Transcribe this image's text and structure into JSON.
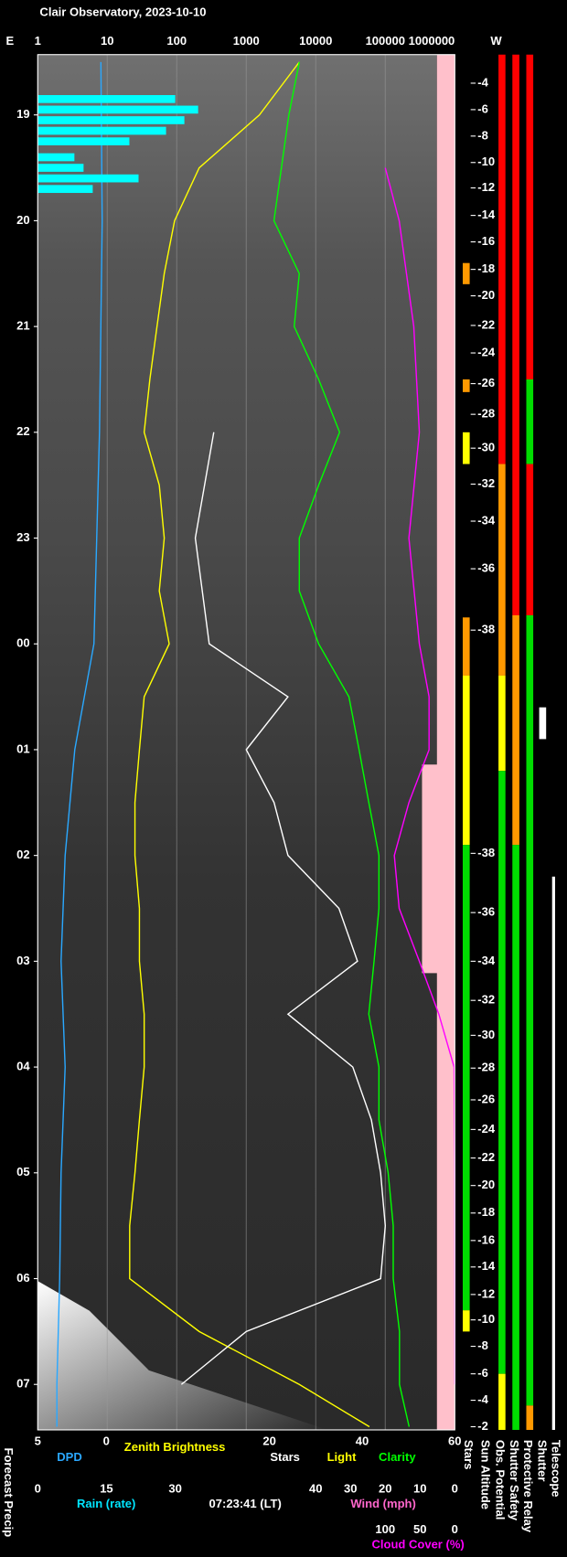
{
  "chart_data": {
    "type": "line",
    "title": "Clair Observatory, 2023-10-10",
    "left_end": "E",
    "right_end": "W",
    "forecast_precip_label": "Forecast Precip",
    "light_label": "Light",
    "clock": "07:23:41 (LT)",
    "log_x": true,
    "grid": true,
    "xlim": [
      1,
      1000000
    ],
    "xticks": [
      1,
      10,
      100,
      1000,
      10000,
      100000,
      1000000
    ],
    "ylim": [
      18.43,
      31.43
    ],
    "yticks": [
      19,
      20,
      21,
      22,
      23,
      {
        "value": 24,
        "label": "00"
      },
      {
        "value": 25,
        "label": "01"
      },
      {
        "value": 26,
        "label": "02"
      },
      {
        "value": 27,
        "label": "03"
      },
      {
        "value": 28,
        "label": "04"
      },
      {
        "value": 29,
        "label": "05"
      },
      {
        "value": 30,
        "label": "06"
      },
      {
        "value": 31,
        "label": "07"
      }
    ],
    "dpd_axis": {
      "lim": [
        5,
        -25.4
      ],
      "ticks": [
        5,
        0
      ]
    },
    "stars_axis": {
      "lim": [
        -30,
        60
      ],
      "ticks": [
        20,
        40,
        60
      ]
    },
    "rain_axis": {
      "lim": [
        0,
        91
      ],
      "ticks": [
        0,
        15,
        30
      ]
    },
    "wind_axis": {
      "label": "Wind (mph)",
      "lim": [
        120,
        0
      ],
      "ticks": [
        40,
        30,
        20,
        10,
        0
      ]
    },
    "cloud_axis": {
      "lim": [
        600,
        0
      ],
      "ticks": [
        100,
        50,
        0
      ]
    },
    "sun_altitude": {
      "label": "Sun Altitude",
      "times": [
        18.7,
        18.95,
        19.2,
        19.45,
        19.69,
        19.95,
        20.2,
        20.46,
        20.71,
        20.99,
        21.25,
        21.54,
        21.83,
        22.15,
        22.49,
        22.84,
        23.29,
        23.87,
        25.98,
        26.54,
        27.0,
        27.37,
        27.7,
        28.01,
        28.31,
        28.59,
        28.86,
        29.12,
        29.38,
        29.64,
        29.89,
        30.15,
        30.39,
        30.64,
        30.9,
        31.15,
        31.4
      ],
      "values": [
        -4,
        -6,
        -8,
        -10,
        -12,
        -14,
        -16,
        -18,
        -20,
        -22,
        -24,
        -26,
        -28,
        -30,
        -32,
        -34,
        -36,
        -38,
        -38,
        -36,
        -34,
        -32,
        -30,
        -28,
        -26,
        -24,
        -22,
        -20,
        -18,
        -16,
        -14,
        -12,
        -10,
        -8,
        -6,
        -4,
        -2
      ]
    },
    "series": [
      {
        "name": "DPD",
        "color": "#2aa8ff",
        "axis": "dpd_axis",
        "style": "line",
        "times": [
          18.5,
          20,
          22,
          24,
          25,
          26,
          27,
          28,
          29,
          30,
          31,
          31.4
        ],
        "values": [
          0.4,
          0.3,
          0.5,
          0.9,
          2.3,
          3.0,
          3.3,
          3.0,
          3.3,
          3.4,
          3.6,
          3.6
        ]
      },
      {
        "name": "Zenith Brightness",
        "color": "#ffff00",
        "axis": "top",
        "style": "line",
        "times": [
          18.5,
          19,
          19.5,
          20,
          20.5,
          21,
          21.5,
          22,
          22.5,
          23,
          23.5,
          24,
          24.5,
          25,
          25.5,
          26,
          26.5,
          27,
          27.5,
          28,
          28.5,
          29,
          29.5,
          30,
          30.5,
          31,
          31.4
        ],
        "values": [
          5800,
          1550,
          210,
          93,
          66,
          52,
          41,
          34,
          56,
          66,
          56,
          78,
          34,
          29,
          25,
          25,
          29,
          29,
          34,
          34,
          29,
          25,
          21,
          21,
          210,
          5800,
          59000
        ]
      },
      {
        "name": "Stars",
        "color": "#ffffff",
        "axis": "stars_axis",
        "style": "line",
        "times": [
          22,
          23,
          24,
          24.5,
          25,
          25.5,
          26,
          26.5,
          27,
          27.5,
          28,
          28.5,
          29,
          29.5,
          30,
          30.5,
          31
        ],
        "values": [
          8,
          4,
          7,
          24,
          15,
          21,
          24,
          35,
          39,
          24,
          38,
          42,
          44,
          45,
          44,
          15,
          1
        ]
      },
      {
        "name": "Clarity",
        "color": "#00ff00",
        "axis": "top",
        "style": "line",
        "times": [
          18.5,
          19,
          20,
          20.5,
          21,
          21.5,
          22,
          22.5,
          23,
          23.5,
          24,
          24.5,
          25,
          25.5,
          26,
          26.5,
          27,
          27.5,
          28,
          28.5,
          29,
          29.5,
          30,
          30.5,
          31,
          31.4
        ],
        "values": [
          5800,
          4100,
          2500,
          5800,
          4900,
          11000,
          22000,
          11000,
          5800,
          5800,
          11000,
          30000,
          42000,
          58000,
          81000,
          81000,
          69000,
          58000,
          81000,
          81000,
          110000,
          130000,
          130000,
          160000,
          160000,
          220000
        ]
      },
      {
        "name": "Rain (rate)",
        "color": "#00ffff",
        "axis": "rain_axis",
        "style": "bars",
        "times": [
          18.85,
          18.95,
          19.05,
          19.15,
          19.25,
          19.4,
          19.5,
          19.6,
          19.7
        ],
        "values": [
          30,
          35,
          32,
          28,
          20,
          8,
          10,
          22,
          12
        ]
      },
      {
        "name": "Cloud Cover (%)",
        "color": "#ff00ff",
        "axis": "cloud_axis",
        "style": "line",
        "times": [
          19.5,
          20,
          21,
          22,
          23,
          24,
          24.5,
          25,
          25.5,
          26,
          26.5,
          27,
          27.5,
          28,
          29,
          30,
          31
        ],
        "values": [
          100,
          80,
          59,
          51,
          66,
          51,
          37,
          37,
          66,
          87,
          80,
          51,
          23,
          1,
          0,
          0,
          0
        ]
      }
    ],
    "status": [
      {
        "name": "Stars",
        "segments": [
          {
            "start": 20.4,
            "end": 20.6,
            "color": "#ff9900"
          },
          {
            "start": 21.5,
            "end": 21.62,
            "color": "#ff9900"
          },
          {
            "start": 22.0,
            "end": 22.3,
            "color": "#ffff00"
          },
          {
            "start": 23.75,
            "end": 24.3,
            "color": "#ff9900"
          },
          {
            "start": 24.3,
            "end": 25.9,
            "color": "#ffff00"
          },
          {
            "start": 25.9,
            "end": 30.3,
            "color": "#00dd00"
          },
          {
            "start": 30.3,
            "end": 30.5,
            "color": "#ffff00"
          }
        ]
      },
      {
        "name": "Obs. Potential",
        "segments": [
          {
            "start": 18.43,
            "end": 22.3,
            "color": "#ff0000"
          },
          {
            "start": 22.3,
            "end": 24.3,
            "color": "#ff9900"
          },
          {
            "start": 24.3,
            "end": 25.2,
            "color": "#ffff00"
          },
          {
            "start": 25.2,
            "end": 30.9,
            "color": "#00dd00"
          },
          {
            "start": 30.9,
            "end": 31.43,
            "color": "#ffff00"
          }
        ]
      },
      {
        "name": "Shutter Safety",
        "segments": [
          {
            "start": 18.43,
            "end": 23.73,
            "color": "#ff0000"
          },
          {
            "start": 23.73,
            "end": 25.9,
            "color": "#ff9900"
          },
          {
            "start": 25.9,
            "end": 31.43,
            "color": "#00dd00"
          }
        ]
      },
      {
        "name": "Protective Relay",
        "segments": [
          {
            "start": 18.43,
            "end": 21.5,
            "color": "#ff0000"
          },
          {
            "start": 21.5,
            "end": 22.3,
            "color": "#00dd00"
          },
          {
            "start": 22.3,
            "end": 23.73,
            "color": "#ff0000"
          },
          {
            "start": 23.73,
            "end": 31.2,
            "color": "#00dd00"
          },
          {
            "start": 31.2,
            "end": 31.43,
            "color": "#ff9900"
          }
        ]
      },
      {
        "name": "Shutter",
        "segments": [
          {
            "start": 24.6,
            "end": 24.9,
            "color": "#ffffff"
          }
        ]
      },
      {
        "name": "Telescope",
        "segments": [
          {
            "start": 26.2,
            "end": 31.43,
            "color": "#ffffff"
          }
        ]
      }
    ]
  }
}
